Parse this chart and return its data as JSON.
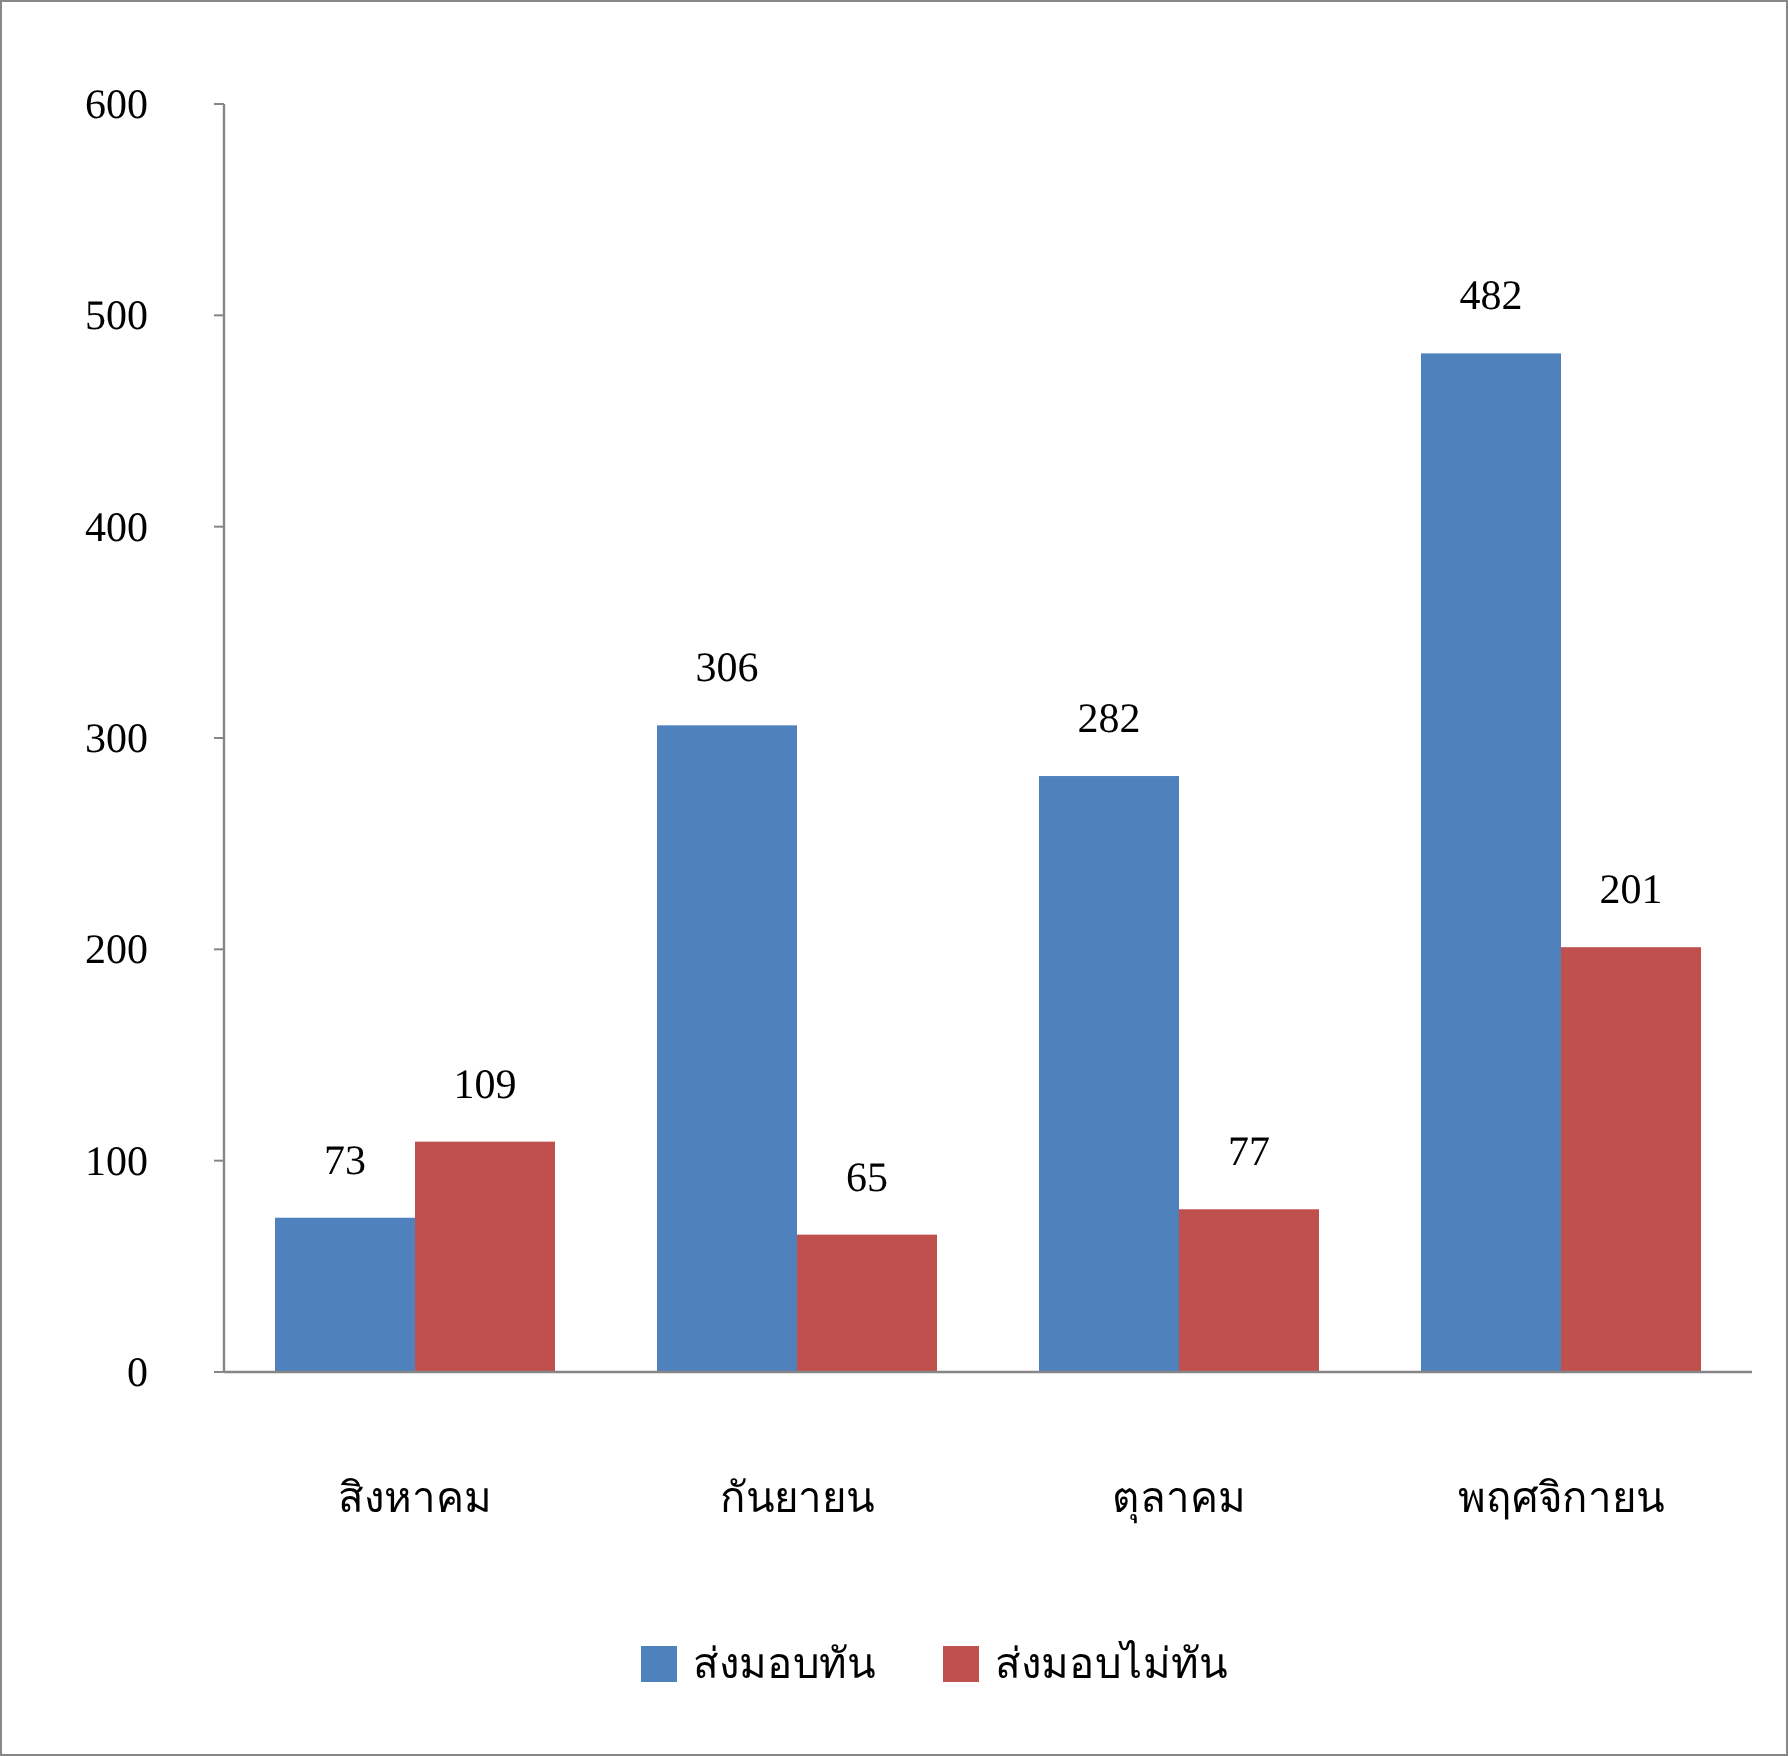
{
  "chart_data": {
    "type": "bar",
    "categories": [
      "สิงหาคม",
      "กันยายน",
      "ตุลาคม",
      "พฤศจิกายน"
    ],
    "series": [
      {
        "name": "ส่งมอบทัน",
        "color": "#4f81bd",
        "values": [
          73,
          306,
          282,
          482
        ]
      },
      {
        "name": "ส่งมอบไม่ทัน",
        "color": "#c0504d",
        "values": [
          109,
          65,
          77,
          201
        ]
      }
    ],
    "ylim": [
      0,
      600
    ],
    "yticks": [
      0,
      100,
      200,
      300,
      400,
      500,
      600
    ],
    "data_labels": true,
    "legend": "bottom",
    "grid": false
  }
}
